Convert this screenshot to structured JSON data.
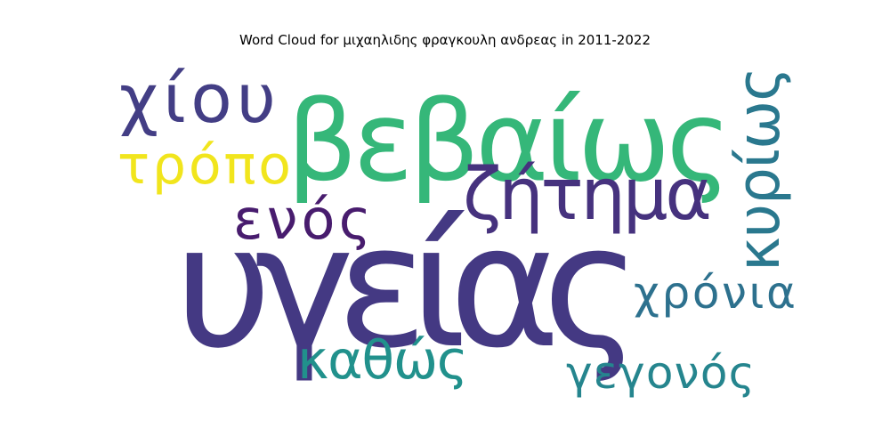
{
  "chart_data": {
    "type": "wordcloud",
    "title": "Word Cloud for μιχαηλιδης φραγκουλη ανδρεας in 2011-2022",
    "words": [
      {
        "text": "υγείας",
        "color": "#443983"
      },
      {
        "text": "βεβαίως",
        "color": "#35b779"
      },
      {
        "text": "ζήτημα",
        "color": "#46327e"
      },
      {
        "text": "κυρίως",
        "color": "#2a788e"
      },
      {
        "text": "χίου",
        "color": "#433e85"
      },
      {
        "text": "τρόπο",
        "color": "#f1e51d"
      },
      {
        "text": "ενός",
        "color": "#481c6e"
      },
      {
        "text": "χρόνια",
        "color": "#2d718e"
      },
      {
        "text": "καθώς",
        "color": "#21918c"
      },
      {
        "text": "γεγονός",
        "color": "#25858e"
      }
    ]
  }
}
